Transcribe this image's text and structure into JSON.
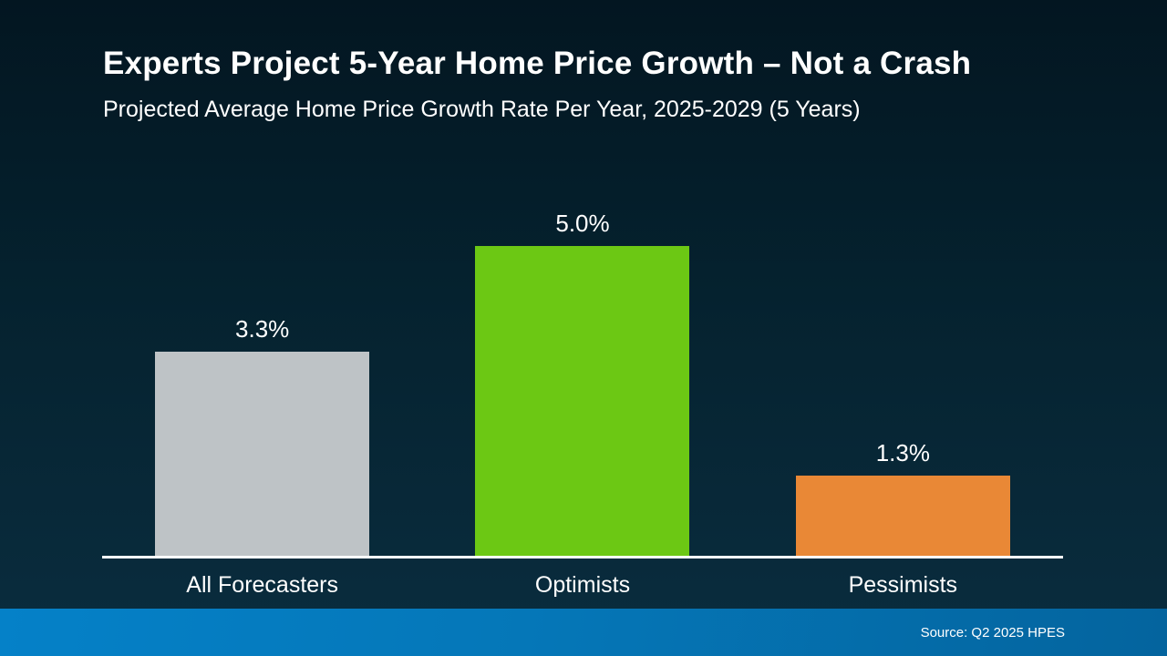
{
  "header": {
    "title": "Experts Project 5-Year Home Price Growth – Not a Crash",
    "subtitle": "Projected Average Home Price Growth Rate Per Year, 2025-2029 (5 Years)"
  },
  "chart_data": {
    "type": "bar",
    "title": "Experts Project 5-Year Home Price Growth – Not a Crash",
    "subtitle": "Projected Average Home Price Growth Rate Per Year, 2025-2029 (5 Years)",
    "categories": [
      "All Forecasters",
      "Optimists",
      "Pessimists"
    ],
    "values": [
      3.3,
      5.0,
      1.3
    ],
    "value_labels": [
      "3.3%",
      "5.0%",
      "1.3%"
    ],
    "bar_colors": [
      "#BEC3C6",
      "#6CC814",
      "#E98836"
    ],
    "xlabel": "",
    "ylabel": "",
    "ylim": [
      0,
      5.5
    ],
    "grid": false,
    "legend": "none",
    "unit": "percent"
  },
  "footer": {
    "source": "Source: Q2 2025 HPES"
  },
  "colors": {
    "background_top": "#031621",
    "background_bottom": "#0A2D3F",
    "footer_left": "#0581C8",
    "footer_right": "#04649E",
    "axis": "#FFFFFF",
    "text": "#FFFFFF",
    "bar_gray": "#BEC3C6",
    "bar_green": "#6CC814",
    "bar_orange": "#E98836"
  }
}
